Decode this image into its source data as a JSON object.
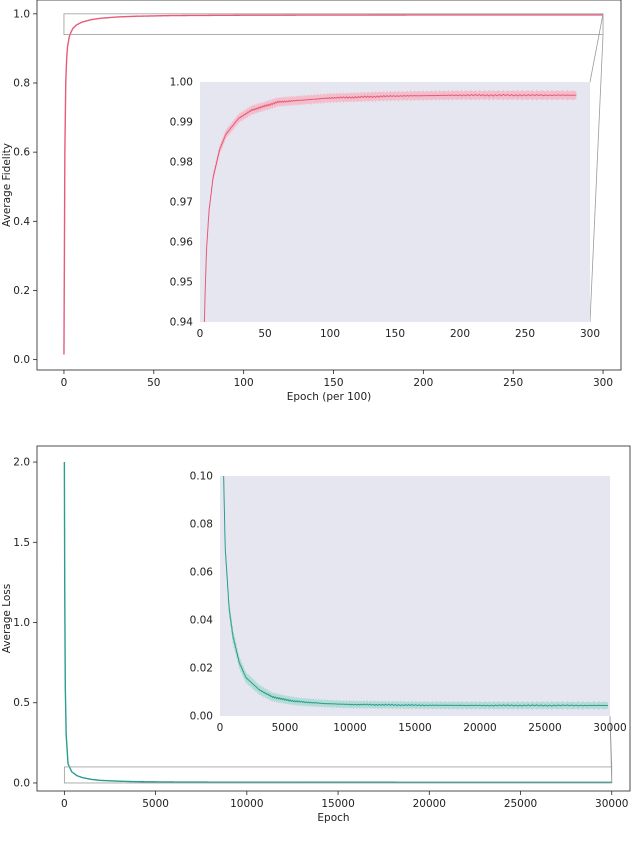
{
  "chart_data": [
    {
      "type": "line",
      "xlabel": "Epoch (per 100)",
      "ylabel": "Average Fidelity",
      "xlim": [
        -15,
        310
      ],
      "ylim": [
        -0.03,
        1.04
      ],
      "x_ticks": [
        "0",
        "50",
        "100",
        "150",
        "200",
        "250",
        "300"
      ],
      "y_ticks": [
        "0.0",
        "0.2",
        "0.4",
        "0.6",
        "0.8",
        "1.0"
      ],
      "series": [
        {
          "color": "#e85a7a",
          "x": [
            0,
            0.5,
            1,
            1.5,
            2,
            3,
            4,
            5,
            7,
            10,
            15,
            20,
            30,
            40,
            60,
            80,
            100,
            150,
            200,
            250,
            300
          ],
          "y": [
            0.015,
            0.6,
            0.8,
            0.87,
            0.905,
            0.935,
            0.948,
            0.958,
            0.968,
            0.976,
            0.983,
            0.987,
            0.991,
            0.993,
            0.995,
            0.9955,
            0.996,
            0.9965,
            0.9967,
            0.9967,
            0.9967
          ]
        }
      ],
      "zoom_box": {
        "x": [
          0,
          300
        ],
        "y": [
          0.94,
          1.0
        ]
      },
      "inset": {
        "background": "#e6e6f0",
        "xlim": [
          0,
          300
        ],
        "ylim": [
          0.94,
          1.0
        ],
        "x_ticks": [
          "0",
          "50",
          "100",
          "150",
          "200",
          "250",
          "300"
        ],
        "y_ticks": [
          "0.94",
          "0.95",
          "0.96",
          "0.97",
          "0.98",
          "0.99",
          "1.00"
        ],
        "band_color": "#f4b6c4",
        "band_halfwidth": [
          0.0022,
          0.0018,
          0.0015,
          0.0013,
          0.0012,
          0.0011,
          0.0011,
          0.0011,
          0.0011,
          0.0011,
          0.0011,
          0.0011,
          0.0011,
          0.0011,
          0.0011,
          0.0011,
          0.0011,
          0.0011,
          0.0011,
          0.0011,
          0.0011
        ]
      }
    },
    {
      "type": "line",
      "xlabel": "Epoch",
      "ylabel": "Average Loss",
      "xlim": [
        -1500,
        31000
      ],
      "ylim": [
        -0.05,
        2.1
      ],
      "x_ticks": [
        "0",
        "5000",
        "10000",
        "15000",
        "20000",
        "25000",
        "30000"
      ],
      "y_ticks": [
        "0.0",
        "0.5",
        "1.0",
        "1.5",
        "2.0"
      ],
      "series": [
        {
          "color": "#2a9d8f",
          "x": [
            0,
            20,
            50,
            100,
            200,
            400,
            700,
            1000,
            1500,
            2000,
            3000,
            4000,
            5000,
            6000,
            8000,
            10000,
            15000,
            20000,
            25000,
            30000
          ],
          "y": [
            2.0,
            1.2,
            0.6,
            0.3,
            0.12,
            0.07,
            0.045,
            0.033,
            0.022,
            0.016,
            0.011,
            0.008,
            0.0068,
            0.006,
            0.0052,
            0.0048,
            0.0045,
            0.0044,
            0.0044,
            0.0044
          ]
        }
      ],
      "zoom_box": {
        "x": [
          0,
          30000
        ],
        "y": [
          0,
          0.1
        ]
      },
      "inset": {
        "background": "#e6e6f0",
        "xlim": [
          0,
          30000
        ],
        "ylim": [
          0,
          0.1
        ],
        "x_ticks": [
          "0",
          "5000",
          "10000",
          "15000",
          "20000",
          "25000",
          "30000"
        ],
        "y_ticks": [
          "0.00",
          "0.02",
          "0.04",
          "0.06",
          "0.08",
          "0.10"
        ],
        "band_color": "#a9d9d1",
        "band_halfwidth": [
          0.003,
          0.003,
          0.003,
          0.003,
          0.003,
          0.003,
          0.003,
          0.003,
          0.0025,
          0.0022,
          0.002,
          0.0018,
          0.0017,
          0.0016,
          0.0015,
          0.0015,
          0.0015,
          0.0015,
          0.0015,
          0.0015
        ]
      }
    }
  ]
}
